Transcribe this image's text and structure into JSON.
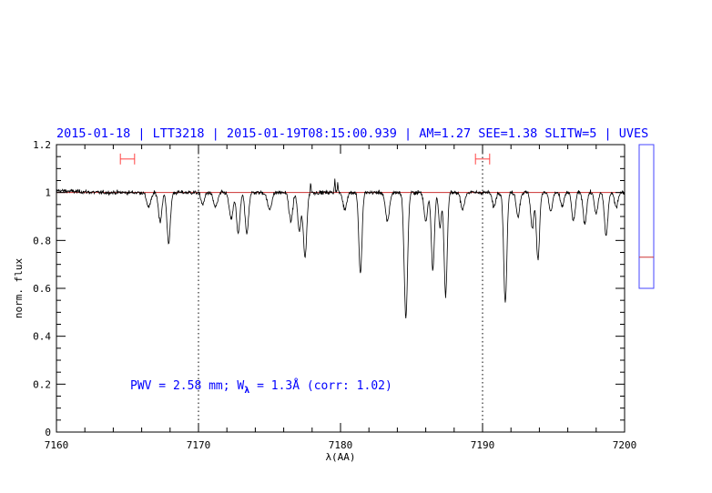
{
  "chart_data": {
    "type": "line",
    "title": "2015-01-18 | LTT3218 | 2015-01-19T08:15:00.939 | AM=1.27  SEE=1.38  SLITW=5 | UVES",
    "xlabel": "λ(AA)",
    "ylabel": "norm. flux",
    "xlim": [
      7160,
      7200
    ],
    "ylim": [
      0,
      1.2
    ],
    "x_ticks": [
      7160,
      7170,
      7180,
      7190,
      7200
    ],
    "y_ticks": [
      0,
      0.2,
      0.4,
      0.6,
      0.8,
      1,
      1.2
    ],
    "x_tick_labels": [
      "7160",
      "7170",
      "7180",
      "7190",
      "7200"
    ],
    "y_tick_labels": [
      "0",
      "0.2",
      "0.4",
      "0.6",
      "0.8",
      "1",
      "1.2"
    ],
    "continuum_level": 1.0,
    "continuum_color": "#cc3333",
    "reference_lines_x": [
      7170,
      7190
    ],
    "continuum_windows": [
      [
        7164.5,
        7165.5
      ],
      [
        7189.5,
        7190.5
      ]
    ],
    "window_y": 1.14,
    "window_color": "#ff4444",
    "annotation": {
      "pwv_prefix": "PWV = 2.58 mm; W",
      "pwv_sub": "λ",
      "pwv_suffix": " = 1.3Å (corr: 1.02)"
    },
    "absorption_lines": [
      {
        "x": 7166.5,
        "depth": 0.06,
        "w": 0.15
      },
      {
        "x": 7167.3,
        "depth": 0.12,
        "w": 0.12
      },
      {
        "x": 7167.9,
        "depth": 0.21,
        "w": 0.12
      },
      {
        "x": 7170.3,
        "depth": 0.05,
        "w": 0.12
      },
      {
        "x": 7171.2,
        "depth": 0.06,
        "w": 0.15
      },
      {
        "x": 7172.3,
        "depth": 0.11,
        "w": 0.14
      },
      {
        "x": 7172.8,
        "depth": 0.17,
        "w": 0.12
      },
      {
        "x": 7173.4,
        "depth": 0.17,
        "w": 0.12
      },
      {
        "x": 7175.0,
        "depth": 0.07,
        "w": 0.15
      },
      {
        "x": 7176.5,
        "depth": 0.12,
        "w": 0.13
      },
      {
        "x": 7177.1,
        "depth": 0.16,
        "w": 0.12
      },
      {
        "x": 7177.5,
        "depth": 0.27,
        "w": 0.12
      },
      {
        "x": 7180.3,
        "depth": 0.07,
        "w": 0.13
      },
      {
        "x": 7181.4,
        "depth": 0.34,
        "w": 0.11
      },
      {
        "x": 7183.3,
        "depth": 0.12,
        "w": 0.14
      },
      {
        "x": 7184.6,
        "depth": 0.52,
        "w": 0.12
      },
      {
        "x": 7186.0,
        "depth": 0.12,
        "w": 0.12
      },
      {
        "x": 7186.5,
        "depth": 0.32,
        "w": 0.11
      },
      {
        "x": 7187.4,
        "depth": 0.43,
        "w": 0.11
      },
      {
        "x": 7187.0,
        "depth": 0.14,
        "w": 0.1
      },
      {
        "x": 7188.6,
        "depth": 0.07,
        "w": 0.13
      },
      {
        "x": 7190.8,
        "depth": 0.06,
        "w": 0.12
      },
      {
        "x": 7191.6,
        "depth": 0.46,
        "w": 0.11
      },
      {
        "x": 7192.5,
        "depth": 0.1,
        "w": 0.12
      },
      {
        "x": 7193.5,
        "depth": 0.15,
        "w": 0.11
      },
      {
        "x": 7193.9,
        "depth": 0.28,
        "w": 0.11
      },
      {
        "x": 7194.8,
        "depth": 0.08,
        "w": 0.12
      },
      {
        "x": 7195.6,
        "depth": 0.06,
        "w": 0.12
      },
      {
        "x": 7196.4,
        "depth": 0.12,
        "w": 0.12
      },
      {
        "x": 7197.2,
        "depth": 0.13,
        "w": 0.12
      },
      {
        "x": 7198.0,
        "depth": 0.09,
        "w": 0.12
      },
      {
        "x": 7198.7,
        "depth": 0.18,
        "w": 0.12
      },
      {
        "x": 7199.4,
        "depth": 0.06,
        "w": 0.12
      }
    ],
    "emission_spikes": [
      {
        "x": 7177.9,
        "height": 0.04
      },
      {
        "x": 7179.6,
        "height": 0.06
      },
      {
        "x": 7179.8,
        "height": 0.04
      }
    ],
    "noise_sigma": 0.006,
    "side_panel": {
      "ylim": [
        0,
        1.2
      ],
      "top": 1.2,
      "bottom": 0.6,
      "marker_y": 0.73,
      "frame_color": "#4444ff",
      "marker_color": "#cc3333"
    }
  }
}
